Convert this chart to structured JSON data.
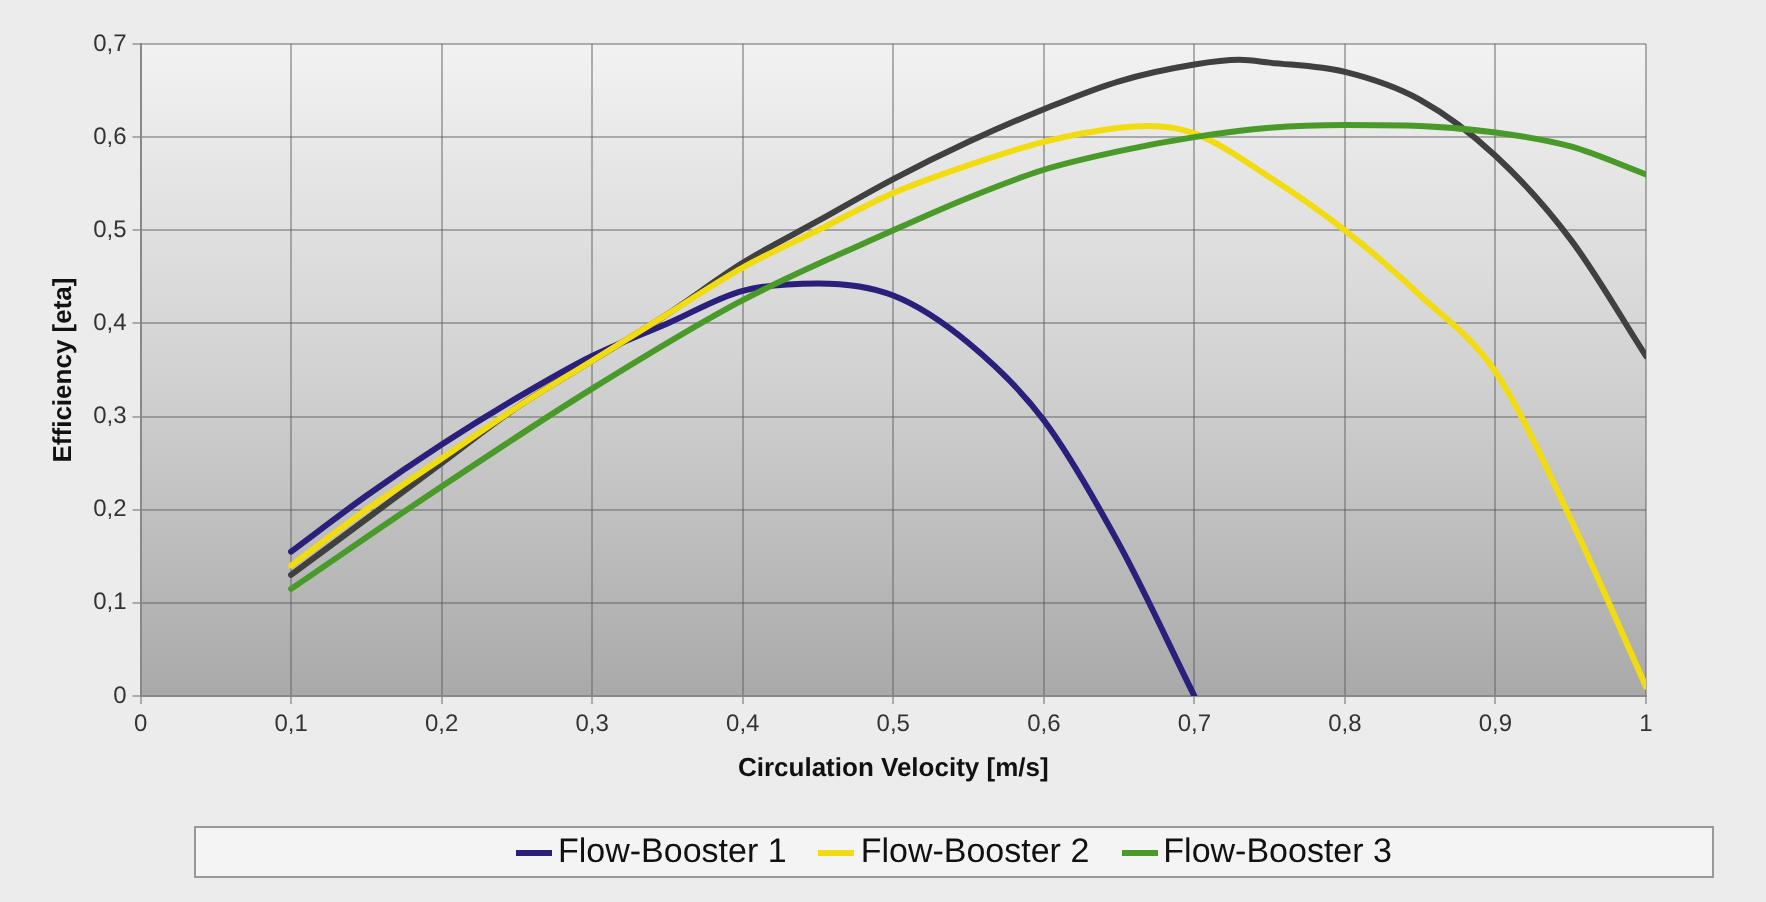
{
  "chart_data": {
    "type": "line",
    "xlabel": "Circulation Velocity [m/s]",
    "ylabel": "Efficiency [eta]",
    "xlim": [
      0,
      1
    ],
    "ylim": [
      0,
      0.7
    ],
    "xticks": [
      0,
      {
        "value": 0.1,
        "label": "0,1"
      },
      {
        "value": 0.2,
        "label": "0,2"
      },
      {
        "value": 0.3,
        "label": "0,3"
      },
      {
        "value": 0.4,
        "label": "0,4"
      },
      {
        "value": 0.5,
        "label": "0,5"
      },
      {
        "value": 0.6,
        "label": "0,6"
      },
      {
        "value": 0.7,
        "label": "0,7"
      },
      {
        "value": 0.8,
        "label": "0,8"
      },
      {
        "value": 0.9,
        "label": "0,9"
      },
      1
    ],
    "yticks": [
      0,
      {
        "value": 0.1,
        "label": "0,1"
      },
      {
        "value": 0.2,
        "label": "0,2"
      },
      {
        "value": 0.3,
        "label": "0,3"
      },
      {
        "value": 0.4,
        "label": "0,4"
      },
      {
        "value": 0.5,
        "label": "0,5"
      },
      {
        "value": 0.6,
        "label": "0,6"
      },
      {
        "value": 0.7,
        "label": "0,7"
      }
    ],
    "grid": true,
    "legend": "bottom",
    "marker": "none",
    "line_style": "solid",
    "series": [
      {
        "color": "#404040",
        "x": [
          0.1,
          0.15,
          0.2,
          0.25,
          0.3,
          0.35,
          0.4,
          0.45,
          0.5,
          0.55,
          0.6,
          0.65,
          0.7,
          0.73,
          0.75,
          0.8,
          0.85,
          0.9,
          0.95,
          1
        ],
        "values": [
          0.13,
          0.19,
          0.25,
          0.31,
          0.36,
          0.41,
          0.465,
          0.51,
          0.555,
          0.595,
          0.63,
          0.66,
          0.678,
          0.683,
          0.68,
          0.67,
          0.64,
          0.58,
          0.49,
          0.365
        ]
      },
      {
        "name": "Flow-Booster 1",
        "color": "#2a1f7a",
        "x": [
          0.1,
          0.15,
          0.2,
          0.25,
          0.3,
          0.35,
          0.4,
          0.45,
          0.5,
          0.55,
          0.6,
          0.65,
          0.7
        ],
        "values": [
          0.155,
          0.215,
          0.27,
          0.32,
          0.365,
          0.4,
          0.435,
          0.443,
          0.43,
          0.379,
          0.296,
          0.163,
          0
        ]
      },
      {
        "name": "Flow-Booster 2",
        "color": "#f0dc10",
        "x": [
          0.1,
          0.15,
          0.2,
          0.25,
          0.3,
          0.35,
          0.4,
          0.45,
          0.5,
          0.55,
          0.6,
          0.65,
          0.67,
          0.7,
          0.75,
          0.8,
          0.85,
          0.9,
          0.95,
          1
        ],
        "values": [
          0.14,
          0.2,
          0.255,
          0.31,
          0.36,
          0.41,
          0.46,
          0.5,
          0.54,
          0.57,
          0.595,
          0.61,
          0.612,
          0.604,
          0.557,
          0.5,
          0.43,
          0.348,
          0.19,
          0.01
        ]
      },
      {
        "name": "Flow-Booster 3",
        "color": "#4a9a2a",
        "x": [
          0.1,
          0.2,
          0.3,
          0.4,
          0.5,
          0.55,
          0.6,
          0.65,
          0.7,
          0.75,
          0.8,
          0.85,
          0.9,
          0.95,
          1
        ],
        "values": [
          0.115,
          0.225,
          0.33,
          0.425,
          0.5,
          0.535,
          0.565,
          0.585,
          0.6,
          0.61,
          0.613,
          0.612,
          0.605,
          0.59,
          0.56
        ]
      }
    ]
  }
}
